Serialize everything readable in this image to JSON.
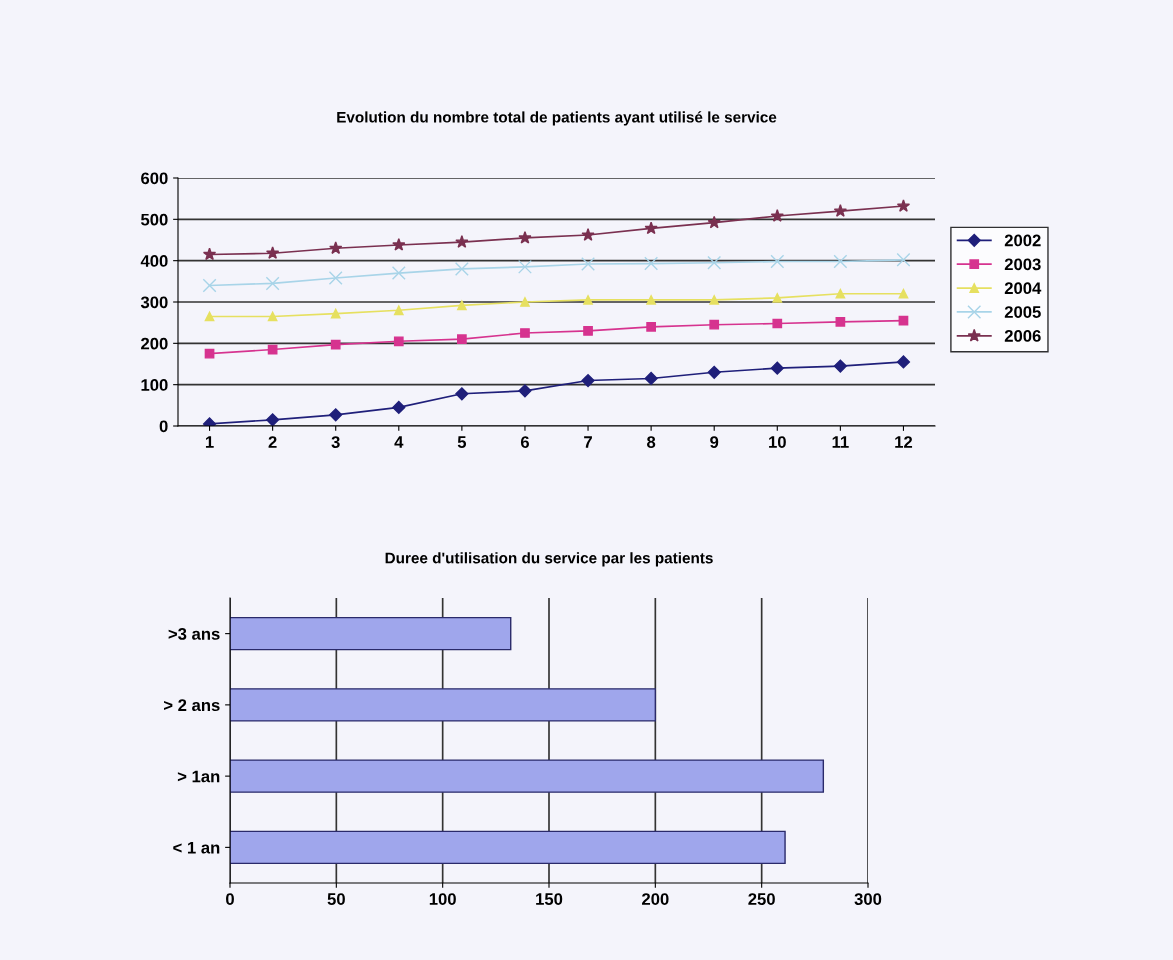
{
  "chart_data": [
    {
      "type": "line",
      "title": "Evolution du nombre total de patients ayant utilisé le service",
      "categories": [
        "1",
        "2",
        "3",
        "4",
        "5",
        "6",
        "7",
        "8",
        "9",
        "10",
        "11",
        "12"
      ],
      "series": [
        {
          "name": "2002",
          "color": "#1f1f7a",
          "marker": "diamond",
          "values": [
            5,
            15,
            27,
            45,
            78,
            85,
            110,
            115,
            130,
            140,
            145,
            155
          ]
        },
        {
          "name": "2003",
          "color": "#d6338f",
          "marker": "square",
          "values": [
            175,
            185,
            197,
            205,
            210,
            225,
            230,
            240,
            245,
            248,
            252,
            255
          ]
        },
        {
          "name": "2004",
          "color": "#e6e060",
          "marker": "triangle",
          "values": [
            265,
            265,
            272,
            280,
            292,
            300,
            305,
            305,
            305,
            310,
            320,
            320
          ]
        },
        {
          "name": "2005",
          "color": "#a8d4e8",
          "marker": "cross",
          "values": [
            340,
            345,
            358,
            370,
            380,
            385,
            392,
            393,
            395,
            398,
            398,
            402
          ]
        },
        {
          "name": "2006",
          "color": "#7a3050",
          "marker": "star",
          "values": [
            415,
            418,
            430,
            438,
            445,
            455,
            462,
            478,
            492,
            508,
            520,
            532
          ]
        }
      ],
      "ylim": [
        0,
        600
      ],
      "yticks": [
        0,
        100,
        200,
        300,
        400,
        500,
        600
      ],
      "grid": "y",
      "legend": "right"
    },
    {
      "type": "bar",
      "orientation": "horizontal",
      "title": "Duree d'utilisation du service par les patients",
      "categories": [
        ">3 ans",
        "> 2 ans",
        "> 1an",
        "< 1 an"
      ],
      "values": [
        132,
        200,
        279,
        261
      ],
      "color": "#9fa6ec",
      "xlim": [
        0,
        300
      ],
      "xticks": [
        0,
        50,
        100,
        150,
        200,
        250,
        300
      ],
      "grid": "x"
    }
  ]
}
